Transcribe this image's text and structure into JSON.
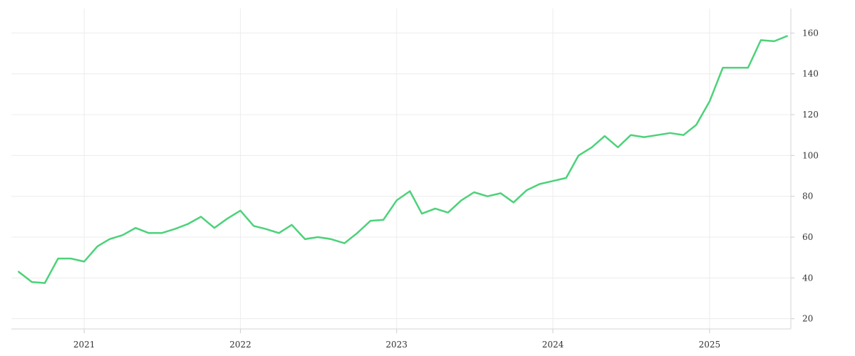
{
  "chart_data": {
    "type": "line",
    "title": "",
    "xlabel": "",
    "ylabel": "",
    "xlim": [
      "2020-07-15",
      "2025-07-10"
    ],
    "ylim": [
      15,
      172
    ],
    "y_axis_position": "right",
    "grid": true,
    "legend": "none",
    "x_ticks": [
      {
        "label": "2021",
        "date": "2021-01-01"
      },
      {
        "label": "2022",
        "date": "2022-01-01"
      },
      {
        "label": "2023",
        "date": "2023-01-01"
      },
      {
        "label": "2024",
        "date": "2024-01-01"
      },
      {
        "label": "2025",
        "date": "2025-01-01"
      }
    ],
    "y_ticks": [
      20,
      40,
      60,
      80,
      100,
      120,
      140,
      160
    ],
    "series": [
      {
        "color": "#4cd27a",
        "x": [
          "2020-08-01",
          "2020-09-01",
          "2020-10-01",
          "2020-11-01",
          "2020-12-01",
          "2021-01-01",
          "2021-02-01",
          "2021-03-01",
          "2021-04-01",
          "2021-05-01",
          "2021-06-01",
          "2021-07-01",
          "2021-08-01",
          "2021-09-01",
          "2021-10-01",
          "2021-11-01",
          "2021-12-01",
          "2022-01-01",
          "2022-02-01",
          "2022-03-01",
          "2022-04-01",
          "2022-05-01",
          "2022-06-01",
          "2022-07-01",
          "2022-08-01",
          "2022-09-01",
          "2022-10-01",
          "2022-11-01",
          "2022-12-01",
          "2023-01-01",
          "2023-02-01",
          "2023-03-01",
          "2023-04-01",
          "2023-05-01",
          "2023-06-01",
          "2023-07-01",
          "2023-08-01",
          "2023-09-01",
          "2023-10-01",
          "2023-11-01",
          "2023-12-01",
          "2024-01-01",
          "2024-02-01",
          "2024-03-01",
          "2024-04-01",
          "2024-05-01",
          "2024-06-01",
          "2024-07-01",
          "2024-08-01",
          "2024-09-01",
          "2024-10-01",
          "2024-11-01",
          "2024-12-01",
          "2025-01-01",
          "2025-02-01",
          "2025-03-01",
          "2025-04-01",
          "2025-05-01",
          "2025-06-01",
          "2025-07-01"
        ],
        "y": [
          43,
          38,
          37.5,
          49.5,
          49.5,
          48,
          55.5,
          59,
          61,
          64.5,
          62,
          62,
          64,
          66.5,
          70,
          64.5,
          69,
          73,
          65.5,
          64,
          62,
          66,
          59,
          60,
          59,
          57,
          62,
          68,
          68.5,
          78,
          82.5,
          71.5,
          74,
          72,
          78,
          82,
          80,
          81.5,
          77,
          83,
          86,
          87.5,
          89,
          100,
          104,
          109.5,
          104,
          110,
          109,
          110,
          111,
          110,
          115,
          126.5,
          143,
          143,
          143,
          156.5,
          156,
          158.5
        ]
      }
    ]
  }
}
